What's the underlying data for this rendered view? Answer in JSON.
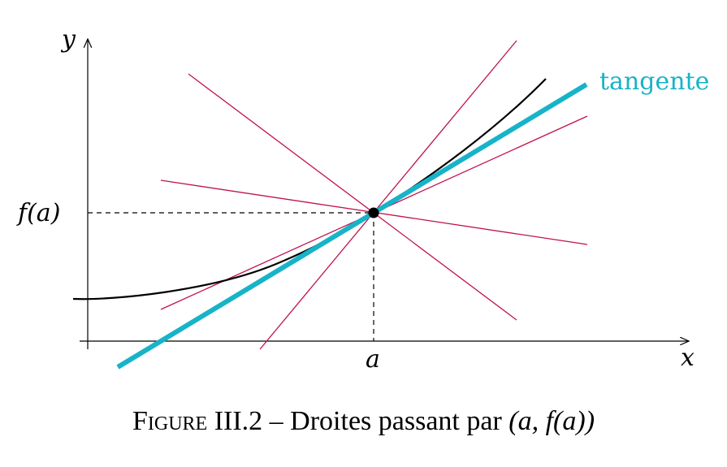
{
  "labels": {
    "y_axis": "y",
    "x_axis": "x",
    "point_x": "a",
    "point_y": "f(a)",
    "tangent": "tangente"
  },
  "caption": {
    "figure_word": "Figure",
    "number": "III.2",
    "dash": "–",
    "text": "Droites passant par",
    "math": "(a, f(a))"
  },
  "colors": {
    "curve": "#000000",
    "tangent": "#17b3c8",
    "secants": "#c0124f",
    "axes": "#000000"
  }
}
